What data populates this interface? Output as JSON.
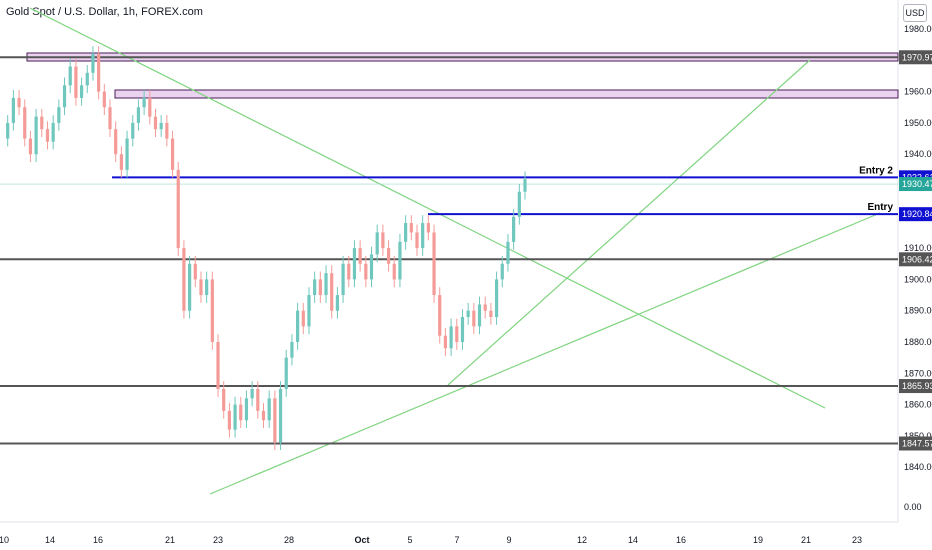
{
  "header": {
    "symbol": "Gold Spot / U.S. Dollar, 1h, FOREX.com",
    "currency": "USD"
  },
  "chart_data": {
    "type": "candlestick",
    "title": "Gold Spot / U.S. Dollar, 1h, FOREX.com",
    "y_ticks": [
      1980,
      1970,
      1960,
      1950,
      1940,
      1930,
      1920,
      1910,
      1900,
      1890,
      1880,
      1870,
      1860,
      1850,
      1840,
      0
    ],
    "y_tick_labels": [
      "1980.00",
      "1970.00",
      "1960.00",
      "1950.00",
      "1940.00",
      "1930.00",
      "1920.00",
      "1910.00",
      "1900.00",
      "1890.00",
      "1880.00",
      "1870.00",
      "1860.00",
      "1850.00",
      "1840.00",
      "0.00"
    ],
    "x_tick_labels": [
      "10",
      "14",
      "16",
      "21",
      "23",
      "28",
      "Oct",
      "5",
      "7",
      "9",
      "12",
      "14",
      "16",
      "19",
      "21",
      "23"
    ],
    "price_levels": [
      {
        "label": "1970.97",
        "price": 1970.97,
        "color": "#555555"
      },
      {
        "label": "1932.61",
        "price": 1932.61,
        "color": "#1010d0"
      },
      {
        "label": "1930.47",
        "price": 1930.47,
        "color": "#26a69a"
      },
      {
        "label": "1920.84",
        "price": 1920.84,
        "color": "#1010d0"
      },
      {
        "label": "1906.42",
        "price": 1906.42,
        "color": "#555555"
      },
      {
        "label": "1865.93",
        "price": 1865.93,
        "color": "#555555"
      },
      {
        "label": "1847.57",
        "price": 1847.57,
        "color": "#555555"
      }
    ],
    "entries": [
      {
        "label": "Entry 2",
        "price": 1932.61
      },
      {
        "label": "Entry",
        "price": 1920.84
      }
    ],
    "candle_path": [
      1945,
      1950,
      1958,
      1955,
      1945,
      1940,
      1952,
      1948,
      1944,
      1950,
      1955,
      1962,
      1968,
      1958,
      1962,
      1966,
      1972,
      1960,
      1955,
      1948,
      1940,
      1935,
      1945,
      1950,
      1955,
      1958,
      1952,
      1948,
      1950,
      1945,
      1935,
      1910,
      1890,
      1905,
      1900,
      1895,
      1900,
      1880,
      1865,
      1858,
      1852,
      1860,
      1855,
      1862,
      1865,
      1858,
      1855,
      1862,
      1848,
      1865,
      1875,
      1880,
      1890,
      1885,
      1895,
      1900,
      1895,
      1902,
      1890,
      1895,
      1905,
      1900,
      1910,
      1905,
      1900,
      1908,
      1915,
      1910,
      1905,
      1900,
      1912,
      1918,
      1915,
      1910,
      1918,
      1915,
      1895,
      1882,
      1878,
      1885,
      1880,
      1888,
      1890,
      1885,
      1892,
      1890,
      1888,
      1900,
      1905,
      1912,
      1920,
      1928,
      1932
    ]
  }
}
